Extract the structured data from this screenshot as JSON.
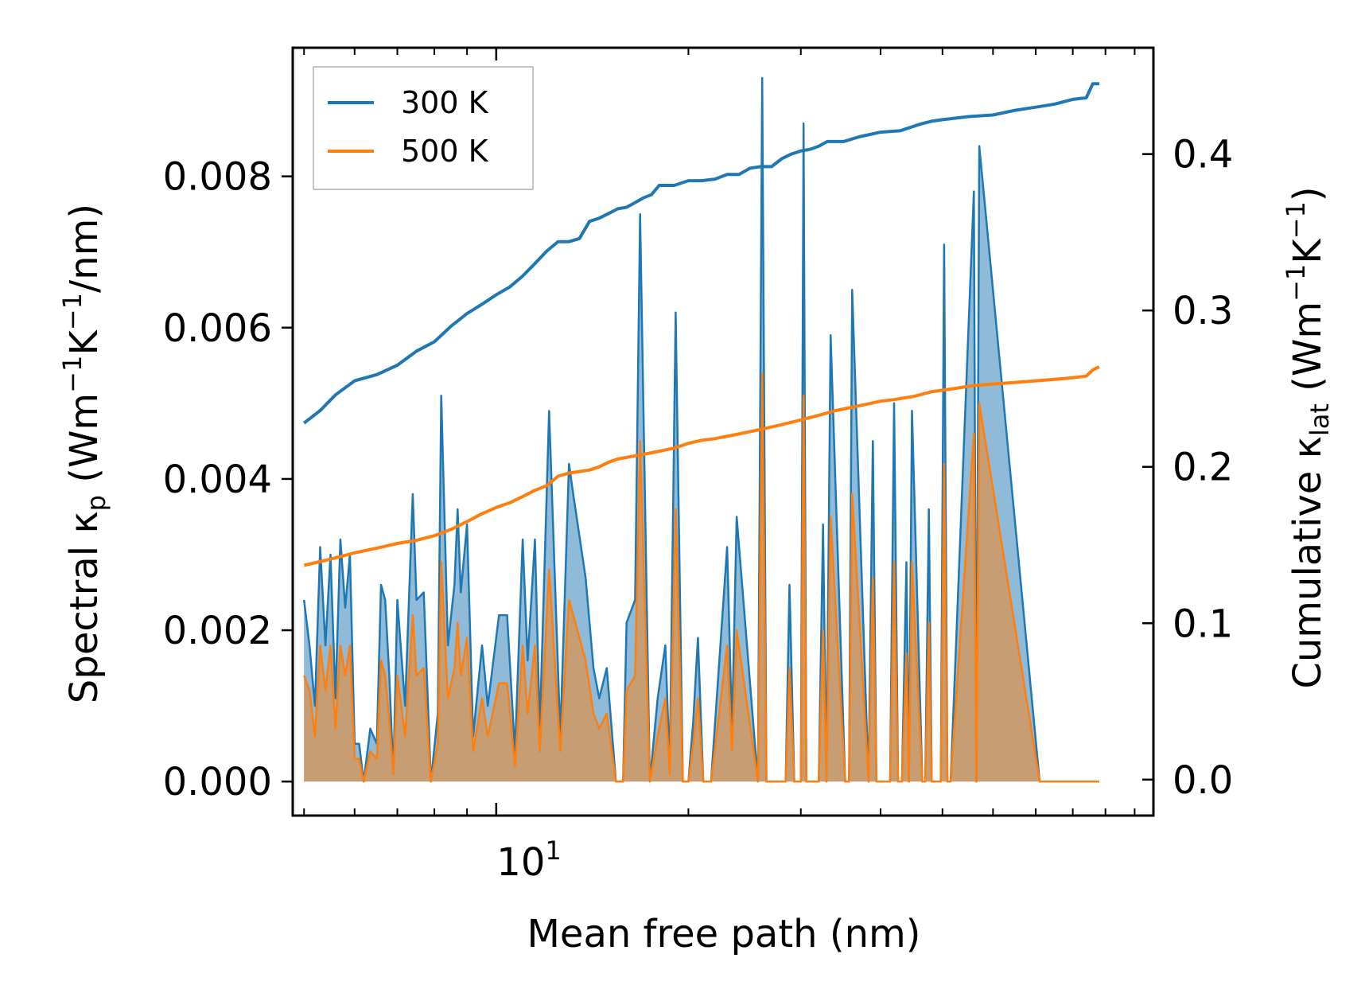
{
  "chart_data": {
    "type": "line",
    "xlabel": "Mean free path (nm)",
    "xscale": "log",
    "xlim": [
      4.8,
      107
    ],
    "x_tick_label": "10",
    "x_tick_label_sup": "1",
    "ylabel_left": {
      "text": "Spectral κ",
      "sub": "p",
      "pre_unit": " (Wm",
      "sup1": "−1",
      "mid": "K",
      "sup2": "−1",
      "post": "/nm)"
    },
    "ylim_left": [
      -0.00045,
      0.0097
    ],
    "left_ticks": [
      0.0,
      0.002,
      0.004,
      0.006,
      0.008
    ],
    "left_tick_labels": [
      "0.000",
      "0.002",
      "0.004",
      "0.006",
      "0.008"
    ],
    "ylabel_right": {
      "text": "Cumulative κ",
      "sub": "lat",
      "pre_unit": " (Wm",
      "sup1": "−1",
      "mid": "K",
      "sup2": "−1",
      "post": ")"
    },
    "ylim_right": [
      -0.023,
      0.468
    ],
    "right_ticks": [
      0.0,
      0.1,
      0.2,
      0.3,
      0.4
    ],
    "right_tick_labels": [
      "0.0",
      "0.1",
      "0.2",
      "0.3",
      "0.4"
    ],
    "legend": {
      "placement": "top-left",
      "entries": [
        "300 K",
        "500 K"
      ]
    },
    "series": [
      {
        "name": "300 K",
        "color": "#1f77b4",
        "kind": "spectral",
        "x": [
          5.0,
          5.1,
          5.2,
          5.3,
          5.4,
          5.5,
          5.6,
          5.7,
          5.8,
          5.9,
          6.0,
          6.1,
          6.2,
          6.35,
          6.5,
          6.6,
          6.7,
          6.8,
          6.9,
          7.0,
          7.2,
          7.4,
          7.5,
          7.7,
          7.9,
          8.1,
          8.2,
          8.4,
          8.6,
          8.7,
          8.8,
          9.0,
          9.2,
          9.5,
          9.7,
          10.1,
          10.4,
          10.7,
          11.0,
          11.2,
          11.5,
          11.7,
          12.1,
          12.6,
          13.0,
          13.2,
          13.8,
          14.2,
          14.5,
          14.9,
          15.4,
          15.8,
          16.0,
          16.5,
          16.8,
          17.4,
          17.9,
          18.4,
          18.7,
          19.1,
          19.6,
          20.0,
          20.35,
          20.7,
          21.1,
          21.7,
          23.0,
          23.4,
          23.8,
          25.7,
          26.1,
          26.5,
          28.4,
          28.8,
          29.3,
          30.0,
          30.3,
          30.6,
          32.0,
          32.5,
          32.9,
          33.4,
          35.2,
          35.7,
          36.1,
          38.3,
          38.9,
          39.4,
          41.4,
          42.0,
          42.6,
          43.2,
          43.9,
          44.3,
          44.8,
          46.5,
          47.0,
          47.6,
          48.1,
          49.7,
          50.3,
          50.9,
          51.5,
          56.0,
          56.5,
          57.1,
          71.0,
          71.7,
          72.4,
          73.0,
          80.0,
          81.0,
          81.8,
          82.5,
          83.2,
          84.0,
          84.6,
          85.5,
          86.3,
          87.0,
          88.0
        ],
        "y": [
          0.0024,
          0.0018,
          0.001,
          0.0031,
          0.0018,
          0.003,
          0.0011,
          0.0032,
          0.0023,
          0.003,
          0.0005,
          0.0005,
          0.0,
          0.0007,
          0.0005,
          0.0026,
          0.0024,
          0.0014,
          0.0001,
          0.0024,
          0.001,
          0.0038,
          0.0024,
          0.0025,
          0.0,
          0.0009,
          0.0051,
          0.0018,
          0.0026,
          0.0036,
          0.0025,
          0.0034,
          0.0006,
          0.0018,
          0.001,
          0.0022,
          0.0022,
          0.0004,
          0.0032,
          0.0016,
          0.0032,
          0.0007,
          0.0049,
          0.0006,
          0.0042,
          0.0038,
          0.0027,
          0.0015,
          0.0011,
          0.0015,
          0.0,
          0.0,
          0.0021,
          0.0024,
          0.0075,
          0.0,
          0.0011,
          0.0018,
          0.0002,
          0.0062,
          0.0,
          0.0,
          0.0008,
          0.0019,
          0.0,
          0.0,
          0.0031,
          0.0007,
          0.0035,
          0.0,
          0.0093,
          0.0,
          0.0,
          0.0026,
          0.0,
          0.0,
          0.0087,
          0.0,
          0.0,
          0.0034,
          0.0,
          0.0059,
          0.0,
          0.0,
          0.0065,
          0.0,
          0.0045,
          0.0,
          0.0,
          0.005,
          0.0,
          0.0,
          0.0029,
          0.0,
          0.0049,
          0.0,
          0.0,
          0.0036,
          0.0,
          0.0,
          0.0071,
          0.0,
          0.0,
          0.0078,
          0.0,
          0.0084,
          0.0,
          0.0,
          0.0,
          0.0,
          0.0,
          0.0,
          0.0,
          0.0,
          0.0,
          0.0,
          0.0,
          0.0,
          0.0,
          0.0,
          0.0
        ]
      },
      {
        "name": "500 K",
        "color": "#ff7f0e",
        "kind": "spectral",
        "x": [
          5.0,
          5.1,
          5.2,
          5.3,
          5.4,
          5.5,
          5.6,
          5.7,
          5.8,
          5.9,
          6.0,
          6.1,
          6.2,
          6.35,
          6.5,
          6.6,
          6.7,
          6.8,
          6.9,
          7.0,
          7.2,
          7.4,
          7.5,
          7.7,
          7.9,
          8.1,
          8.2,
          8.4,
          8.6,
          8.7,
          8.8,
          9.0,
          9.2,
          9.5,
          9.7,
          10.1,
          10.4,
          10.7,
          11.0,
          11.2,
          11.5,
          11.7,
          12.1,
          12.6,
          13.0,
          13.2,
          13.8,
          14.2,
          14.5,
          14.9,
          15.4,
          15.8,
          16.0,
          16.5,
          16.8,
          17.4,
          17.9,
          18.4,
          18.7,
          19.1,
          19.6,
          20.0,
          20.35,
          20.7,
          21.1,
          21.7,
          23.0,
          23.4,
          23.8,
          25.7,
          26.1,
          26.5,
          28.4,
          28.8,
          29.3,
          30.0,
          30.3,
          30.6,
          32.0,
          32.5,
          32.9,
          33.4,
          35.2,
          35.7,
          36.1,
          38.3,
          38.9,
          39.4,
          41.4,
          42.0,
          42.6,
          43.2,
          43.9,
          44.3,
          44.8,
          46.5,
          47.0,
          47.6,
          48.1,
          49.7,
          50.3,
          50.9,
          51.5,
          56.0,
          56.5,
          57.1,
          71.0,
          71.7,
          72.4,
          73.0,
          80.0,
          81.0,
          81.8,
          82.5,
          83.2,
          84.0,
          84.6,
          85.5,
          86.3,
          87.0,
          88.0
        ],
        "y": [
          0.0014,
          0.0012,
          0.0006,
          0.0018,
          0.0012,
          0.0018,
          0.0007,
          0.0018,
          0.0014,
          0.0018,
          0.0003,
          0.0003,
          0.0,
          0.0004,
          0.0003,
          0.0016,
          0.0014,
          0.0008,
          0.0001,
          0.0014,
          0.0006,
          0.0022,
          0.0014,
          0.0015,
          0.0,
          0.0005,
          0.0029,
          0.0011,
          0.0015,
          0.0021,
          0.0014,
          0.0019,
          0.0004,
          0.0011,
          0.0006,
          0.0013,
          0.0013,
          0.0002,
          0.0018,
          0.0009,
          0.0018,
          0.0004,
          0.0028,
          0.0004,
          0.0024,
          0.0022,
          0.0016,
          0.0009,
          0.0007,
          0.0009,
          0.0,
          0.0,
          0.0012,
          0.0014,
          0.0045,
          0.0,
          0.0006,
          0.0011,
          0.0001,
          0.0036,
          0.0,
          0.0,
          0.0005,
          0.0011,
          0.0,
          0.0,
          0.0018,
          0.0004,
          0.002,
          0.0,
          0.0054,
          0.0,
          0.0,
          0.0015,
          0.0,
          0.0,
          0.0051,
          0.0,
          0.0,
          0.002,
          0.0,
          0.0035,
          0.0,
          0.0,
          0.0038,
          0.0,
          0.0027,
          0.0,
          0.0,
          0.0029,
          0.0,
          0.0,
          0.0017,
          0.0,
          0.0029,
          0.0,
          0.0,
          0.0021,
          0.0,
          0.0,
          0.0042,
          0.0,
          0.0,
          0.0046,
          0.0,
          0.005,
          0.0,
          0.0,
          0.0,
          0.0,
          0.0,
          0.0,
          0.0,
          0.0,
          0.0,
          0.0,
          0.0,
          0.0,
          0.0,
          0.0,
          0.0
        ]
      },
      {
        "name": "300 K",
        "color": "#1f77b4",
        "kind": "cumulative",
        "x": [
          5.0,
          5.3,
          5.6,
          6.0,
          6.5,
          7.0,
          7.5,
          8.0,
          8.5,
          9.0,
          9.5,
          10.0,
          10.5,
          11.0,
          11.5,
          12.0,
          12.5,
          13.0,
          13.5,
          14.0,
          14.5,
          15.0,
          15.5,
          16.0,
          16.5,
          17.0,
          17.5,
          18.0,
          18.5,
          19.0,
          20.0,
          20.5,
          21.0,
          22.0,
          23.0,
          24.0,
          25.0,
          26.0,
          27.0,
          28.0,
          29.0,
          30.0,
          31.0,
          32.0,
          33.0,
          35.0,
          37.0,
          40.0,
          43.0,
          46.0,
          48.0,
          50.0,
          55.0,
          60.0,
          65.0,
          70.0,
          75.0,
          80.0,
          84.0,
          86.0,
          88.0
        ],
        "y": [
          0.228,
          0.236,
          0.246,
          0.255,
          0.259,
          0.265,
          0.274,
          0.28,
          0.29,
          0.298,
          0.304,
          0.31,
          0.315,
          0.322,
          0.33,
          0.338,
          0.344,
          0.344,
          0.346,
          0.357,
          0.359,
          0.362,
          0.365,
          0.366,
          0.369,
          0.372,
          0.374,
          0.38,
          0.38,
          0.38,
          0.383,
          0.383,
          0.383,
          0.384,
          0.387,
          0.387,
          0.391,
          0.392,
          0.392,
          0.397,
          0.4,
          0.402,
          0.403,
          0.405,
          0.408,
          0.408,
          0.411,
          0.414,
          0.415,
          0.419,
          0.421,
          0.422,
          0.424,
          0.425,
          0.428,
          0.43,
          0.432,
          0.435,
          0.436,
          0.445,
          0.445
        ]
      },
      {
        "name": "500 K",
        "color": "#ff7f0e",
        "kind": "cumulative",
        "x": [
          5.0,
          5.5,
          6.0,
          6.5,
          7.0,
          7.5,
          8.0,
          8.5,
          9.0,
          9.5,
          10.0,
          10.5,
          11.0,
          11.5,
          12.0,
          12.5,
          13.0,
          13.5,
          14.0,
          14.5,
          15.0,
          15.5,
          16.0,
          17.0,
          18.0,
          19.0,
          20.0,
          21.0,
          22.0,
          24.0,
          26.0,
          28.0,
          30.0,
          32.0,
          34.0,
          36.0,
          38.0,
          40.0,
          42.0,
          45.0,
          48.0,
          52.0,
          56.0,
          60.0,
          65.0,
          70.0,
          75.0,
          80.0,
          84.0,
          86.0,
          88.0
        ],
        "y": [
          0.137,
          0.141,
          0.145,
          0.148,
          0.151,
          0.153,
          0.156,
          0.16,
          0.165,
          0.17,
          0.174,
          0.177,
          0.181,
          0.185,
          0.188,
          0.194,
          0.196,
          0.197,
          0.198,
          0.2,
          0.203,
          0.205,
          0.206,
          0.208,
          0.21,
          0.212,
          0.215,
          0.217,
          0.218,
          0.221,
          0.224,
          0.227,
          0.23,
          0.233,
          0.236,
          0.238,
          0.24,
          0.242,
          0.243,
          0.245,
          0.248,
          0.25,
          0.252,
          0.253,
          0.254,
          0.255,
          0.256,
          0.257,
          0.258,
          0.262,
          0.264
        ]
      }
    ]
  }
}
